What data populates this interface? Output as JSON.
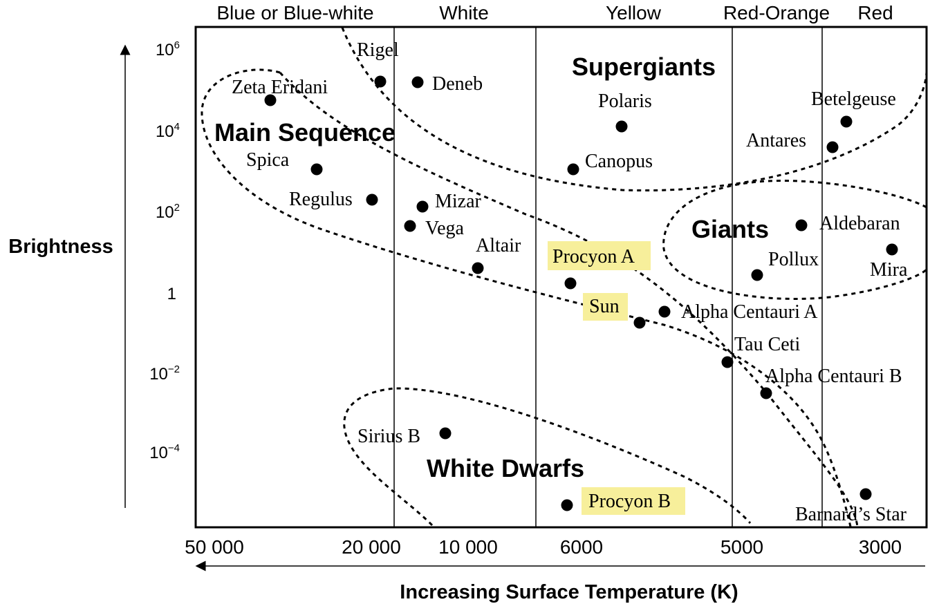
{
  "color_bands": [
    "Blue or Blue-white",
    "White",
    "Yellow",
    "Red-Orange",
    "Red"
  ],
  "y_axis": {
    "title": "Brightness",
    "ticks": [
      {
        "base": "10",
        "exp": "6"
      },
      {
        "base": "10",
        "exp": "4"
      },
      {
        "base": "10",
        "exp": "2"
      },
      {
        "base": "1",
        "exp": ""
      },
      {
        "base": "10",
        "exp": "−2"
      },
      {
        "base": "10",
        "exp": "−4"
      }
    ]
  },
  "x_axis": {
    "title": "Increasing Surface Temperature (K)",
    "ticks": [
      "50 000",
      "20 000",
      "10 000",
      "6000",
      "5000",
      "3000"
    ]
  },
  "regions": [
    "Supergiants",
    "Main Sequence",
    "Giants",
    "White Dwarfs"
  ],
  "highlight_color": "#f7ef9b",
  "stars": [
    {
      "name": "Rigel",
      "highlight": false
    },
    {
      "name": "Deneb",
      "highlight": false
    },
    {
      "name": "Zeta Eridani",
      "highlight": false
    },
    {
      "name": "Polaris",
      "highlight": false
    },
    {
      "name": "Betelgeuse",
      "highlight": false
    },
    {
      "name": "Antares",
      "highlight": false
    },
    {
      "name": "Canopus",
      "highlight": false
    },
    {
      "name": "Spica",
      "highlight": false
    },
    {
      "name": "Regulus",
      "highlight": false
    },
    {
      "name": "Mizar",
      "highlight": false
    },
    {
      "name": "Vega",
      "highlight": false
    },
    {
      "name": "Altair",
      "highlight": false
    },
    {
      "name": "Procyon A",
      "highlight": true
    },
    {
      "name": "Aldebaran",
      "highlight": false
    },
    {
      "name": "Pollux",
      "highlight": false
    },
    {
      "name": "Mira",
      "highlight": false
    },
    {
      "name": "Sun",
      "highlight": true
    },
    {
      "name": "Alpha Centauri A",
      "highlight": false
    },
    {
      "name": "Tau Ceti",
      "highlight": false
    },
    {
      "name": "Alpha Centauri B",
      "highlight": false
    },
    {
      "name": "Sirius B",
      "highlight": false
    },
    {
      "name": "Procyon B",
      "highlight": true
    },
    {
      "name": "Barnard’s Star",
      "highlight": false
    }
  ]
}
